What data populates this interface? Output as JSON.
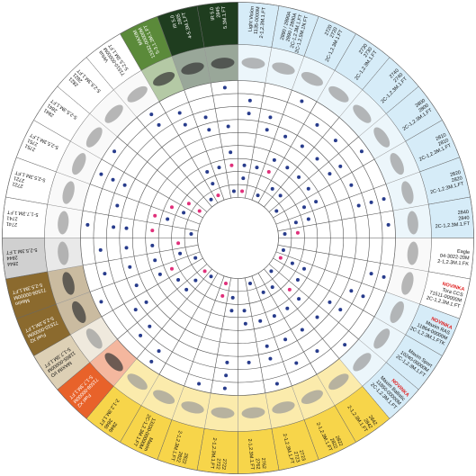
{
  "sectors": [
    {
      "lines": [
        "Light Vision",
        "1135-0000M",
        "2-1,2.3M.1.FT"
      ],
      "color": "#d6ecf8"
    },
    {
      "lines": [
        "2890 / 2890A",
        "2890 / 2890A",
        "2C-1,2.3M.1.FT",
        "2C-1,2.5M.1N.FT"
      ],
      "color": "#d6ecf8"
    },
    {
      "lines": [
        "2720",
        "2720",
        "2C-1,2.3M.1.FT"
      ],
      "color": "#d6ecf8"
    },
    {
      "lines": [
        "2730",
        "2730",
        "2C-1,2.3M.1.FT"
      ],
      "color": "#d6ecf8"
    },
    {
      "lines": [
        "2740",
        "2740",
        "2C-1,2.3M.1.FT"
      ],
      "color": "#d6ecf8"
    },
    {
      "lines": [
        "2800",
        "2800",
        "2C-1,2.3M.1.FT"
      ],
      "color": "#d6ecf8"
    },
    {
      "lines": [
        "2810",
        "2810",
        "2C-1,2.3M.1.FT"
      ],
      "color": "#d6ecf8"
    },
    {
      "lines": [
        "2820",
        "2820",
        "2C-1,2.3M.1.FT"
      ],
      "color": "#d6ecf8"
    },
    {
      "lines": [
        "2840",
        "2840",
        "2C-1,2.3M.1.FT"
      ],
      "color": "#d6ecf8"
    },
    {
      "lines": [
        "Eagle",
        "04-3022-20M",
        "2-1,2.3M.1.FK"
      ],
      "color": "#ffffff"
    },
    {
      "badge": "NOVINKA",
      "lines": [
        "Tora CCS",
        "71511-00000M",
        "2C-1,2.3M.1.FT"
      ],
      "color": "#ffffff"
    },
    {
      "badge": "NOVINKA",
      "lines": [
        "Maxim RAS",
        "11864-00000M",
        "2C-1,2.3M.1.FTK"
      ],
      "color": "#d6ecf8"
    },
    {
      "lines": [
        "Maxim Sport",
        "10240-00000M",
        "2C-1,2.3M.1.FT"
      ],
      "color": "#d6ecf8"
    },
    {
      "badge": "NOVINKA",
      "lines": [
        "Maxim Ballistic",
        "11850-00000M",
        "2C-1,2.3M.1.FT"
      ],
      "color": "#d6ecf8"
    },
    {
      "lines": [
        "2842",
        "2842",
        "2-1,2.3M.1.FT"
      ],
      "color": "#f7d54a"
    },
    {
      "lines": [
        "2822",
        "2822",
        "2-1,2.3M.1.FT"
      ],
      "color": "#f7d54a"
    },
    {
      "lines": [
        "2723",
        "2723",
        "2-1,2.3M.1.FT"
      ],
      "color": "#f7d54a"
    },
    {
      "lines": [
        "2762",
        "2762",
        "2-1,2.3M.1.FT"
      ],
      "color": "#f7d54a"
    },
    {
      "lines": [
        "2722",
        "2722",
        "2-1,2.3M.1.FT"
      ],
      "color": "#f7d54a"
    },
    {
      "lines": [
        "2822",
        "2822",
        "2-1,2.3M.1.FT"
      ],
      "color": "#f7d54a"
    },
    {
      "lines": [
        "Maxim",
        "13330-00000M",
        "2C-1,2.3M.1.FT"
      ],
      "color": "#f7d54a"
    },
    {
      "lines": [
        "2846",
        "2846",
        "2-1,2.3M.1.FT"
      ],
      "color": "#f7d54a"
    },
    {
      "lines": [
        "Fuel X2",
        "71508-00000M",
        "5-1,7.3M.1.FT"
      ],
      "color": "#e8622a"
    },
    {
      "lines": [
        "MAXIM I/O",
        "11865-00000M",
        "5-1,7.3M.1.FT"
      ],
      "color": "#ddd0b5"
    },
    {
      "lines": [
        "Fuel X2",
        "71510-00000M",
        "5-2,5.3M.1.FT"
      ],
      "color": "#8b6a2e"
    },
    {
      "lines": [
        "Maxim",
        "71509-00000M",
        "5-2,5.3M.1.FT"
      ],
      "color": "#8b6a2e"
    },
    {
      "lines": [
        "2844",
        "2844",
        "5-2,5.3M.1.FT"
      ],
      "color": "#d0d0d0"
    },
    {
      "lines": [
        "2741",
        "2741",
        "5-1,7.3M.1.FT"
      ],
      "color": "#ffffff"
    },
    {
      "lines": [
        "2721",
        "2721",
        "5-2,5.3M.1.FT"
      ],
      "color": "#ffffff"
    },
    {
      "lines": [
        "2751",
        "2751",
        "5-2,5.3M.1.FT"
      ],
      "color": "#ffffff"
    },
    {
      "lines": [
        "2841",
        "2841",
        "5-2,5.3M.1.FT"
      ],
      "color": "#ffffff"
    },
    {
      "lines": [
        "2821",
        "2821",
        "5-2,5.3M.1.FT"
      ],
      "color": "#ffffff"
    },
    {
      "lines": [
        "Virtua",
        "71510-00000M",
        "5-2,5.3M.1.FT"
      ],
      "color": "#ffffff"
    },
    {
      "lines": [
        "MAXIM",
        "13332-00000M",
        "5-3,1.3M.1.FT"
      ],
      "color": "#5b8a3a"
    },
    {
      "lines": [
        "IR 5.0",
        "2805",
        "4-5.3M.1.FT"
      ],
      "color": "#1f3d1f"
    },
    {
      "lines": [
        "IR 5.0",
        "2845",
        "5.3M.1.FT"
      ],
      "color": "#1f3d1f"
    }
  ]
}
